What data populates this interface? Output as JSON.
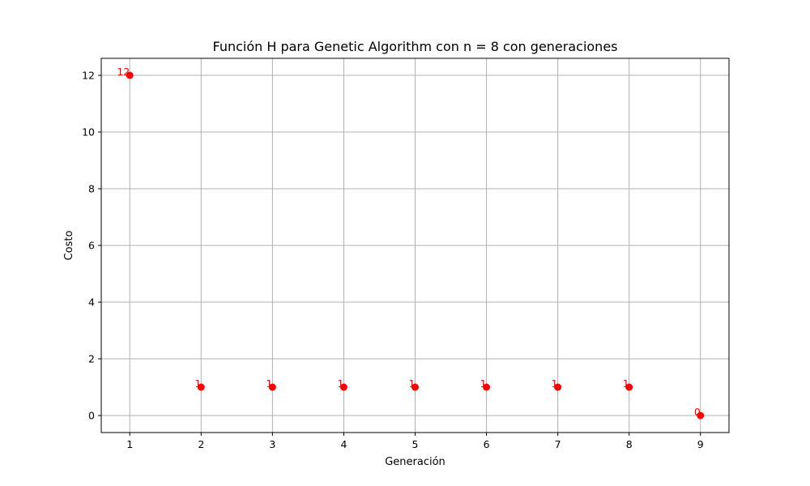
{
  "chart_data": {
    "type": "scatter",
    "title": "Función H para Genetic Algorithm con n = 8 con generaciones",
    "xlabel": "Generación",
    "ylabel": "Costo",
    "x": [
      1,
      2,
      3,
      4,
      5,
      6,
      7,
      8,
      9
    ],
    "y": [
      12,
      1,
      1,
      1,
      1,
      1,
      1,
      1,
      0
    ],
    "point_labels": [
      "12",
      "1",
      "1",
      "1",
      "1",
      "1",
      "1",
      "1",
      "0"
    ],
    "xticks": [
      1,
      2,
      3,
      4,
      5,
      6,
      7,
      8,
      9
    ],
    "yticks": [
      0,
      2,
      4,
      6,
      8,
      10,
      12
    ],
    "xlim": [
      0.6,
      9.4
    ],
    "ylim": [
      -0.6,
      12.6
    ],
    "grid": true,
    "marker_color": "#ff0000",
    "label_color": "#ff0000"
  }
}
